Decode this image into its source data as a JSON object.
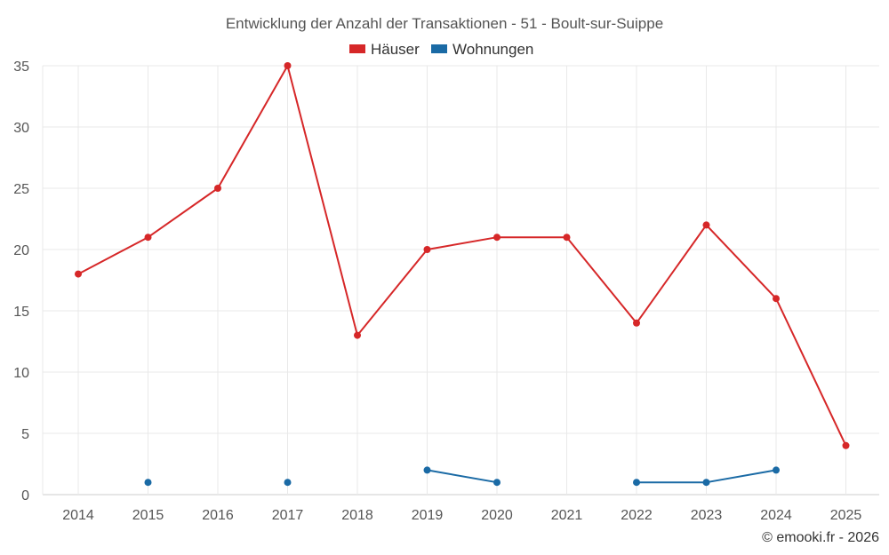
{
  "chart_data": {
    "type": "line",
    "title": "Entwicklung der Anzahl der Transaktionen - 51 - Boult-sur-Suippe",
    "categories": [
      "2014",
      "2015",
      "2016",
      "2017",
      "2018",
      "2019",
      "2020",
      "2021",
      "2022",
      "2023",
      "2024",
      "2025"
    ],
    "series": [
      {
        "name": "Häuser",
        "color": "#d62728",
        "values": [
          18,
          21,
          25,
          35,
          13,
          20,
          21,
          21,
          14,
          22,
          16,
          4
        ]
      },
      {
        "name": "Wohnungen",
        "color": "#1a6aa5",
        "values": [
          null,
          1,
          null,
          1,
          null,
          2,
          1,
          null,
          1,
          1,
          2,
          null
        ]
      }
    ],
    "ylim": [
      0,
      35
    ],
    "yticks": [
      "0",
      "5",
      "10",
      "15",
      "20",
      "25",
      "30",
      "35"
    ],
    "xlabel": "",
    "ylabel": "",
    "grid": true,
    "legend": "top-center"
  },
  "credit": "© emooki.fr - 2026"
}
